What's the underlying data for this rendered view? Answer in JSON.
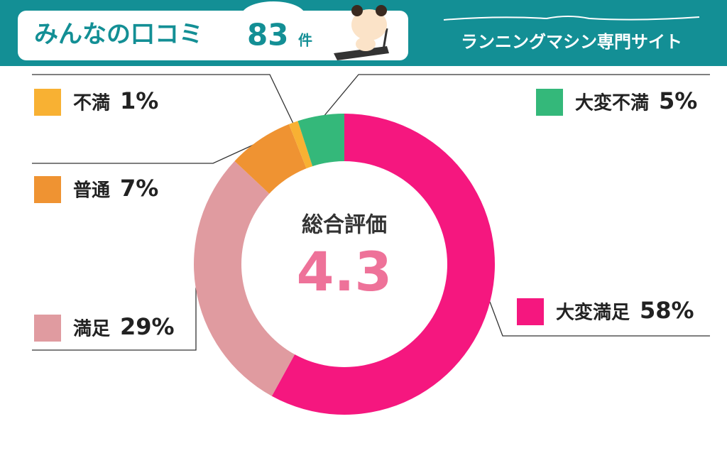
{
  "header": {
    "title": "みんなの口コミ",
    "count": 83,
    "count_unit": "件",
    "site": "ランニングマシン専門サイト"
  },
  "chart_data": {
    "type": "donut",
    "center_title": "総合評価",
    "center_value": 4.3,
    "categories": [
      "大変満足",
      "満足",
      "普通",
      "不満",
      "大変不満"
    ],
    "values": [
      58,
      29,
      7,
      1,
      5
    ],
    "value_labels": [
      "58%",
      "29%",
      "7%",
      "1%",
      "5%"
    ],
    "colors": [
      "#f5177f",
      "#e09ba0",
      "#ef9332",
      "#f8b133",
      "#34b87a"
    ]
  }
}
